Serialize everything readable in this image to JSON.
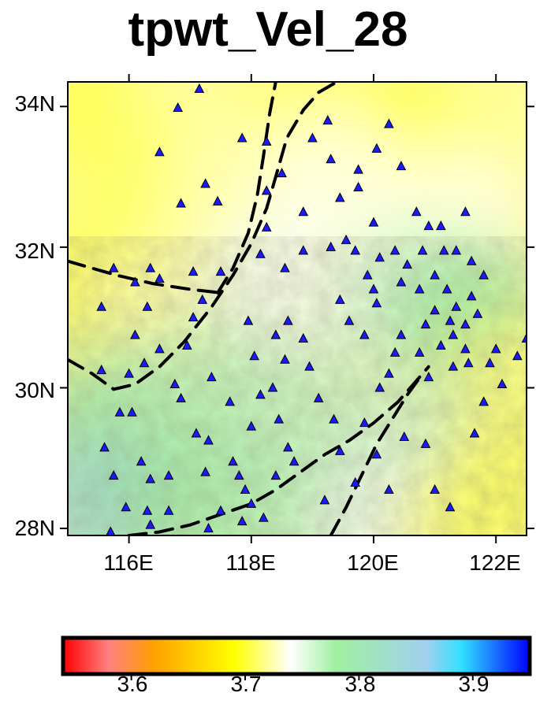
{
  "title": "tpwt_Vel_28",
  "map": {
    "lon_range": [
      115.0,
      122.5
    ],
    "lat_range": [
      27.9,
      34.35
    ],
    "lat_ticks": [
      {
        "value": 34,
        "label": "34N"
      },
      {
        "value": 32,
        "label": "32N"
      },
      {
        "value": 30,
        "label": "30N"
      },
      {
        "value": 28,
        "label": "28N"
      }
    ],
    "lon_ticks": [
      {
        "value": 116,
        "label": "116E"
      },
      {
        "value": 118,
        "label": "118E"
      },
      {
        "value": 120,
        "label": "120E"
      },
      {
        "value": 122,
        "label": "122E"
      }
    ],
    "station_color": "#1a1aff",
    "fault_color": "#000000",
    "stations": [
      [
        117.15,
        34.25
      ],
      [
        116.8,
        33.98
      ],
      [
        116.5,
        33.35
      ],
      [
        117.25,
        32.9
      ],
      [
        116.85,
        32.62
      ],
      [
        117.45,
        32.65
      ],
      [
        118.25,
        33.5
      ],
      [
        117.85,
        33.55
      ],
      [
        118.25,
        32.8
      ],
      [
        118.5,
        33.05
      ],
      [
        118.25,
        32.28
      ],
      [
        119.0,
        33.55
      ],
      [
        119.25,
        33.8
      ],
      [
        119.3,
        33.25
      ],
      [
        119.75,
        33.1
      ],
      [
        120.05,
        33.4
      ],
      [
        120.25,
        33.75
      ],
      [
        120.45,
        33.15
      ],
      [
        119.75,
        32.85
      ],
      [
        119.45,
        32.7
      ],
      [
        118.85,
        32.5
      ],
      [
        120.7,
        32.5
      ],
      [
        121.1,
        32.3
      ],
      [
        121.5,
        32.5
      ],
      [
        120.9,
        32.3
      ],
      [
        120.0,
        32.35
      ],
      [
        119.55,
        32.1
      ],
      [
        119.3,
        32.0
      ],
      [
        118.85,
        31.95
      ],
      [
        119.7,
        31.95
      ],
      [
        119.9,
        31.6
      ],
      [
        120.1,
        31.85
      ],
      [
        120.35,
        31.95
      ],
      [
        120.55,
        31.75
      ],
      [
        120.8,
        31.95
      ],
      [
        121.15,
        31.95
      ],
      [
        121.35,
        31.95
      ],
      [
        121.6,
        31.8
      ],
      [
        121.8,
        31.6
      ],
      [
        121.0,
        31.6
      ],
      [
        120.75,
        31.4
      ],
      [
        120.45,
        31.5
      ],
      [
        121.0,
        31.1
      ],
      [
        121.2,
        31.4
      ],
      [
        121.35,
        31.15
      ],
      [
        121.6,
        31.3
      ],
      [
        121.7,
        31.05
      ],
      [
        121.5,
        30.9
      ],
      [
        120.85,
        30.9
      ],
      [
        120.75,
        30.5
      ],
      [
        120.45,
        30.75
      ],
      [
        120.35,
        30.5
      ],
      [
        120.25,
        30.2
      ],
      [
        120.1,
        30.0
      ],
      [
        121.25,
        30.95
      ],
      [
        121.3,
        30.75
      ],
      [
        121.5,
        30.55
      ],
      [
        121.9,
        30.35
      ],
      [
        122.0,
        30.55
      ],
      [
        122.1,
        30.05
      ],
      [
        122.35,
        30.45
      ],
      [
        122.5,
        30.7
      ],
      [
        121.3,
        30.3
      ],
      [
        120.9,
        30.15
      ],
      [
        116.35,
        31.7
      ],
      [
        116.5,
        31.55
      ],
      [
        116.1,
        31.5
      ],
      [
        115.75,
        31.7
      ],
      [
        116.3,
        31.15
      ],
      [
        115.55,
        31.15
      ],
      [
        116.1,
        30.75
      ],
      [
        116.5,
        30.55
      ],
      [
        116.25,
        30.35
      ],
      [
        116.0,
        30.2
      ],
      [
        115.55,
        30.25
      ],
      [
        115.85,
        29.65
      ],
      [
        116.05,
        29.65
      ],
      [
        115.6,
        29.15
      ],
      [
        115.75,
        28.75
      ],
      [
        116.2,
        28.95
      ],
      [
        116.3,
        28.25
      ],
      [
        115.95,
        28.3
      ],
      [
        116.35,
        28.7
      ],
      [
        116.65,
        28.75
      ],
      [
        116.65,
        28.25
      ],
      [
        115.7,
        27.95
      ],
      [
        116.75,
        30.05
      ],
      [
        116.85,
        29.85
      ],
      [
        116.95,
        30.6
      ],
      [
        117.05,
        31.0
      ],
      [
        117.35,
        30.15
      ],
      [
        117.2,
        31.25
      ],
      [
        117.1,
        29.35
      ],
      [
        117.3,
        29.25
      ],
      [
        117.25,
        28.8
      ],
      [
        117.5,
        28.25
      ],
      [
        117.7,
        28.95
      ],
      [
        117.8,
        28.75
      ],
      [
        117.9,
        28.55
      ],
      [
        118.0,
        28.35
      ],
      [
        118.2,
        28.15
      ],
      [
        117.85,
        28.1
      ],
      [
        118.0,
        29.45
      ],
      [
        118.15,
        29.9
      ],
      [
        118.05,
        30.45
      ],
      [
        117.95,
        30.95
      ],
      [
        118.35,
        30.0
      ],
      [
        118.45,
        29.55
      ],
      [
        118.6,
        29.15
      ],
      [
        118.7,
        28.95
      ],
      [
        118.55,
        30.4
      ],
      [
        118.85,
        30.7
      ],
      [
        118.95,
        30.3
      ],
      [
        119.1,
        29.85
      ],
      [
        119.35,
        29.55
      ],
      [
        119.45,
        29.1
      ],
      [
        119.6,
        30.95
      ],
      [
        119.45,
        31.25
      ],
      [
        119.85,
        30.75
      ],
      [
        120.05,
        31.2
      ],
      [
        118.4,
        30.75
      ],
      [
        118.6,
        30.95
      ],
      [
        119.85,
        29.5
      ],
      [
        120.05,
        29.05
      ],
      [
        120.5,
        29.3
      ],
      [
        120.85,
        29.2
      ],
      [
        121.0,
        28.55
      ],
      [
        121.25,
        28.3
      ],
      [
        120.25,
        28.55
      ],
      [
        119.7,
        28.65
      ],
      [
        119.2,
        28.4
      ],
      [
        118.4,
        28.75
      ],
      [
        117.65,
        29.8
      ],
      [
        117.5,
        31.65
      ],
      [
        118.15,
        31.9
      ],
      [
        118.55,
        31.7
      ],
      [
        117.05,
        31.65
      ],
      [
        117.3,
        28.0
      ],
      [
        116.35,
        28.05
      ],
      [
        120.0,
        31.4
      ],
      [
        121.1,
        30.6
      ],
      [
        121.55,
        30.35
      ],
      [
        121.8,
        29.8
      ],
      [
        121.65,
        29.35
      ]
    ],
    "faults": [
      [
        [
          115.0,
          31.8
        ],
        [
          115.8,
          31.6
        ],
        [
          116.4,
          31.48
        ],
        [
          117.0,
          31.4
        ],
        [
          117.5,
          31.35
        ]
      ],
      [
        [
          115.0,
          30.4
        ],
        [
          115.4,
          30.2
        ],
        [
          115.75,
          29.98
        ],
        [
          116.1,
          30.05
        ],
        [
          116.5,
          30.3
        ],
        [
          116.9,
          30.65
        ],
        [
          117.35,
          31.15
        ],
        [
          117.7,
          31.6
        ],
        [
          118.0,
          32.05
        ],
        [
          118.25,
          32.55
        ],
        [
          118.4,
          33.0
        ],
        [
          118.58,
          33.55
        ],
        [
          118.85,
          33.95
        ],
        [
          119.1,
          34.2
        ],
        [
          119.4,
          34.35
        ]
      ],
      [
        [
          117.45,
          31.35
        ],
        [
          117.7,
          31.7
        ],
        [
          117.95,
          32.2
        ],
        [
          118.1,
          32.75
        ],
        [
          118.2,
          33.3
        ],
        [
          118.3,
          33.9
        ],
        [
          118.4,
          34.35
        ]
      ],
      [
        [
          116.0,
          27.9
        ],
        [
          116.5,
          27.95
        ],
        [
          117.0,
          28.05
        ],
        [
          117.5,
          28.2
        ],
        [
          118.0,
          28.35
        ],
        [
          118.4,
          28.55
        ],
        [
          118.8,
          28.8
        ],
        [
          119.2,
          29.05
        ],
        [
          119.6,
          29.25
        ],
        [
          120.0,
          29.5
        ],
        [
          120.4,
          29.8
        ],
        [
          120.7,
          30.1
        ],
        [
          120.9,
          30.3
        ]
      ],
      [
        [
          119.3,
          27.9
        ],
        [
          119.55,
          28.3
        ],
        [
          119.8,
          28.75
        ],
        [
          120.05,
          29.2
        ],
        [
          120.3,
          29.55
        ],
        [
          120.55,
          29.9
        ],
        [
          120.8,
          30.2
        ]
      ]
    ],
    "velocity_field": [
      {
        "lon": 115.5,
        "lat": 34.0,
        "v": 3.705
      },
      {
        "lon": 117.2,
        "lat": 34.0,
        "v": 3.72
      },
      {
        "lon": 119.0,
        "lat": 34.0,
        "v": 3.71
      },
      {
        "lon": 121.0,
        "lat": 33.6,
        "v": 3.695
      },
      {
        "lon": 122.2,
        "lat": 33.8,
        "v": 3.72
      },
      {
        "lon": 116.3,
        "lat": 32.7,
        "v": 3.71
      },
      {
        "lon": 117.8,
        "lat": 32.8,
        "v": 3.725
      },
      {
        "lon": 119.4,
        "lat": 32.9,
        "v": 3.735
      },
      {
        "lon": 121.3,
        "lat": 32.4,
        "v": 3.735
      },
      {
        "lon": 115.4,
        "lat": 31.4,
        "v": 3.705
      },
      {
        "lon": 116.6,
        "lat": 31.1,
        "v": 3.725
      },
      {
        "lon": 118.5,
        "lat": 31.5,
        "v": 3.745
      },
      {
        "lon": 119.6,
        "lat": 31.4,
        "v": 3.735
      },
      {
        "lon": 120.6,
        "lat": 31.3,
        "v": 3.76
      },
      {
        "lon": 121.6,
        "lat": 31.0,
        "v": 3.78
      },
      {
        "lon": 122.3,
        "lat": 30.0,
        "v": 3.715
      },
      {
        "lon": 115.6,
        "lat": 29.5,
        "v": 3.79
      },
      {
        "lon": 117.2,
        "lat": 29.8,
        "v": 3.77
      },
      {
        "lon": 118.8,
        "lat": 29.6,
        "v": 3.765
      },
      {
        "lon": 120.6,
        "lat": 29.0,
        "v": 3.76
      },
      {
        "lon": 122.2,
        "lat": 28.6,
        "v": 3.71
      },
      {
        "lon": 115.4,
        "lat": 28.2,
        "v": 3.83
      },
      {
        "lon": 117.0,
        "lat": 28.3,
        "v": 3.79
      },
      {
        "lon": 118.4,
        "lat": 28.1,
        "v": 3.77
      },
      {
        "lon": 120.2,
        "lat": 28.0,
        "v": 3.745
      },
      {
        "lon": 121.6,
        "lat": 28.0,
        "v": 3.71
      }
    ]
  },
  "colorbar": {
    "range": [
      3.54,
      3.95
    ],
    "stops": [
      {
        "v": 3.54,
        "color": "#ff0000"
      },
      {
        "v": 3.58,
        "color": "#ff8080"
      },
      {
        "v": 3.62,
        "color": "#ffa000"
      },
      {
        "v": 3.65,
        "color": "#ffc800"
      },
      {
        "v": 3.69,
        "color": "#ffff00"
      },
      {
        "v": 3.74,
        "color": "#ffffff"
      },
      {
        "v": 3.78,
        "color": "#a0f0a0"
      },
      {
        "v": 3.86,
        "color": "#a0d0f0"
      },
      {
        "v": 3.89,
        "color": "#30e0ff"
      },
      {
        "v": 3.95,
        "color": "#0000ff"
      }
    ],
    "ticks": [
      {
        "value": 3.6,
        "label": "3.6"
      },
      {
        "value": 3.7,
        "label": "3.7"
      },
      {
        "value": 3.8,
        "label": "3.8"
      },
      {
        "value": 3.9,
        "label": "3.9"
      }
    ]
  }
}
